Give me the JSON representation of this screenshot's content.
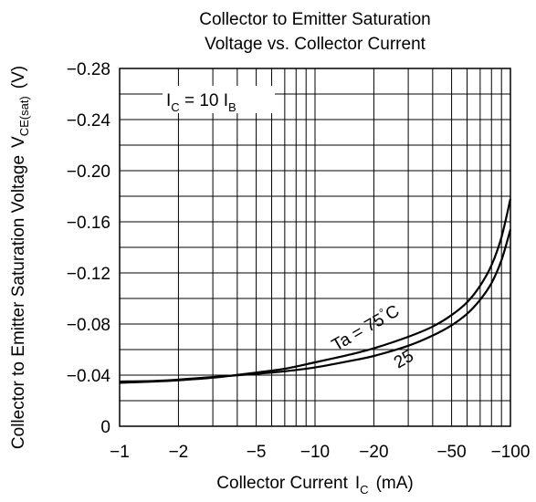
{
  "chart_data": {
    "type": "line",
    "title_line1": "Collector to Emitter Saturation",
    "title_line2": "Voltage vs. Collector Current",
    "xlabel": {
      "main": "Collector Current",
      "symbol": "I",
      "symbol_sub": "C",
      "unit": "(mA)"
    },
    "ylabel": {
      "main": "Collector to Emitter Saturation Voltage",
      "symbol": "V",
      "symbol_sub": "CE(sat)",
      "unit": "(V)"
    },
    "x_scale": "log",
    "xlim": [
      -1,
      -100
    ],
    "ylim": [
      0,
      -0.28
    ],
    "x_ticks": [
      {
        "value": -1,
        "label": "−1"
      },
      {
        "value": -2,
        "label": "−2"
      },
      {
        "value": -5,
        "label": "−5"
      },
      {
        "value": -10,
        "label": "−10"
      },
      {
        "value": -20,
        "label": "−20"
      },
      {
        "value": -50,
        "label": "−50"
      },
      {
        "value": -100,
        "label": "−100"
      }
    ],
    "y_ticks": [
      {
        "value": 0,
        "label": "0"
      },
      {
        "value": -0.04,
        "label": "−0.04"
      },
      {
        "value": -0.08,
        "label": "−0.08"
      },
      {
        "value": -0.12,
        "label": "−0.12"
      },
      {
        "value": -0.16,
        "label": "−0.16"
      },
      {
        "value": -0.2,
        "label": "−0.20"
      },
      {
        "value": -0.24,
        "label": "−0.24"
      },
      {
        "value": -0.28,
        "label": "−0.28"
      }
    ],
    "grid": true,
    "condition": {
      "i": "I",
      "c": "C",
      "eq": " = 10 ",
      "ib": "I",
      "b": "B"
    },
    "series": [
      {
        "name": "Ta = 75°C",
        "x": [
          -1,
          -1.5,
          -2,
          -3,
          -5,
          -7,
          -10,
          -15,
          -20,
          -30,
          -40,
          -50,
          -60,
          -70,
          -80,
          -90,
          -100
        ],
        "y": [
          -0.034,
          -0.035,
          -0.036,
          -0.038,
          -0.042,
          -0.045,
          -0.05,
          -0.056,
          -0.061,
          -0.07,
          -0.078,
          -0.087,
          -0.097,
          -0.11,
          -0.126,
          -0.148,
          -0.178
        ]
      },
      {
        "name": "25",
        "x": [
          -1,
          -1.5,
          -2,
          -3,
          -5,
          -7,
          -10,
          -15,
          -20,
          -30,
          -40,
          -50,
          -60,
          -70,
          -80,
          -90,
          -100
        ],
        "y": [
          -0.035,
          -0.0355,
          -0.0365,
          -0.0385,
          -0.041,
          -0.043,
          -0.046,
          -0.051,
          -0.055,
          -0.063,
          -0.071,
          -0.079,
          -0.088,
          -0.099,
          -0.112,
          -0.13,
          -0.154
        ]
      }
    ],
    "labels": {
      "ta75_a": "Ta",
      "ta75_b": "= 75",
      "ta75_deg": "°",
      "ta75_c": "C",
      "t25": "25"
    }
  }
}
